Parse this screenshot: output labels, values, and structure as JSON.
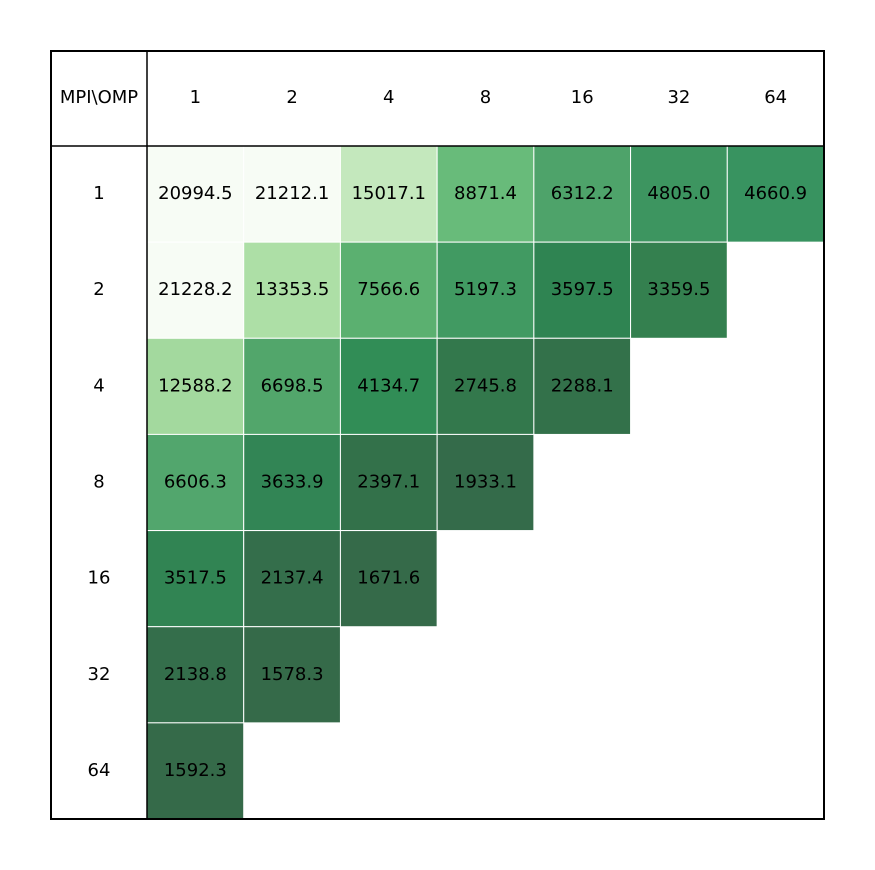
{
  "chart_data": {
    "type": "heatmap",
    "corner_label": "MPI\\OMP",
    "x": [
      "1",
      "2",
      "4",
      "8",
      "16",
      "32",
      "64"
    ],
    "y": [
      "1",
      "2",
      "4",
      "8",
      "16",
      "32",
      "64"
    ],
    "values": [
      [
        20994.5,
        21212.1,
        15017.1,
        8871.4,
        6312.2,
        4805.0,
        4660.9
      ],
      [
        21228.2,
        13353.5,
        7566.6,
        5197.3,
        3597.5,
        3359.5,
        null
      ],
      [
        12588.2,
        6698.5,
        4134.7,
        2745.8,
        2288.1,
        null,
        null
      ],
      [
        6606.3,
        3633.9,
        2397.1,
        1933.1,
        null,
        null,
        null
      ],
      [
        3517.5,
        2137.4,
        1671.6,
        null,
        null,
        null,
        null
      ],
      [
        2138.8,
        1578.3,
        null,
        null,
        null,
        null,
        null
      ],
      [
        1592.3,
        null,
        null,
        null,
        null,
        null,
        null
      ]
    ],
    "value_labels": [
      [
        "20994.5",
        "21212.1",
        "15017.1",
        "8871.4",
        "6312.2",
        "4805.0",
        "4660.9"
      ],
      [
        "21228.2",
        "13353.5",
        "7566.6",
        "5197.3",
        "3597.5",
        "3359.5",
        null
      ],
      [
        "12588.2",
        "6698.5",
        "4134.7",
        "2745.8",
        "2288.1",
        null,
        null
      ],
      [
        "6606.3",
        "3633.9",
        "2397.1",
        "1933.1",
        null,
        null,
        null
      ],
      [
        "3517.5",
        "2137.4",
        "1671.6",
        null,
        null,
        null,
        null
      ],
      [
        "2138.8",
        "1578.3",
        null,
        null,
        null,
        null,
        null
      ],
      [
        "1592.3",
        null,
        null,
        null,
        null,
        null,
        null
      ]
    ],
    "colors": [
      [
        "#f7fcf5",
        "#f7fcf5",
        "#c4e8bd",
        "#68bb7a",
        "#4ea36a",
        "#3d9560",
        "#389360"
      ],
      [
        "#f7fcf5",
        "#addfa6",
        "#5bb070",
        "#419a62",
        "#2f8452",
        "#34804f",
        null
      ],
      [
        "#a3d99e",
        "#52a66b",
        "#318d56",
        "#33784c",
        "#33714a",
        null,
        null
      ],
      [
        "#52a66d",
        "#328555",
        "#33714a",
        "#346b4a",
        null,
        null,
        null
      ],
      [
        "#318453",
        "#346e4b",
        "#356a49",
        null,
        null,
        null,
        null
      ],
      [
        "#346e4b",
        "#356a49",
        null,
        null,
        null,
        null,
        null
      ],
      [
        "#356a49",
        null,
        null,
        null,
        null,
        null,
        null
      ]
    ]
  }
}
